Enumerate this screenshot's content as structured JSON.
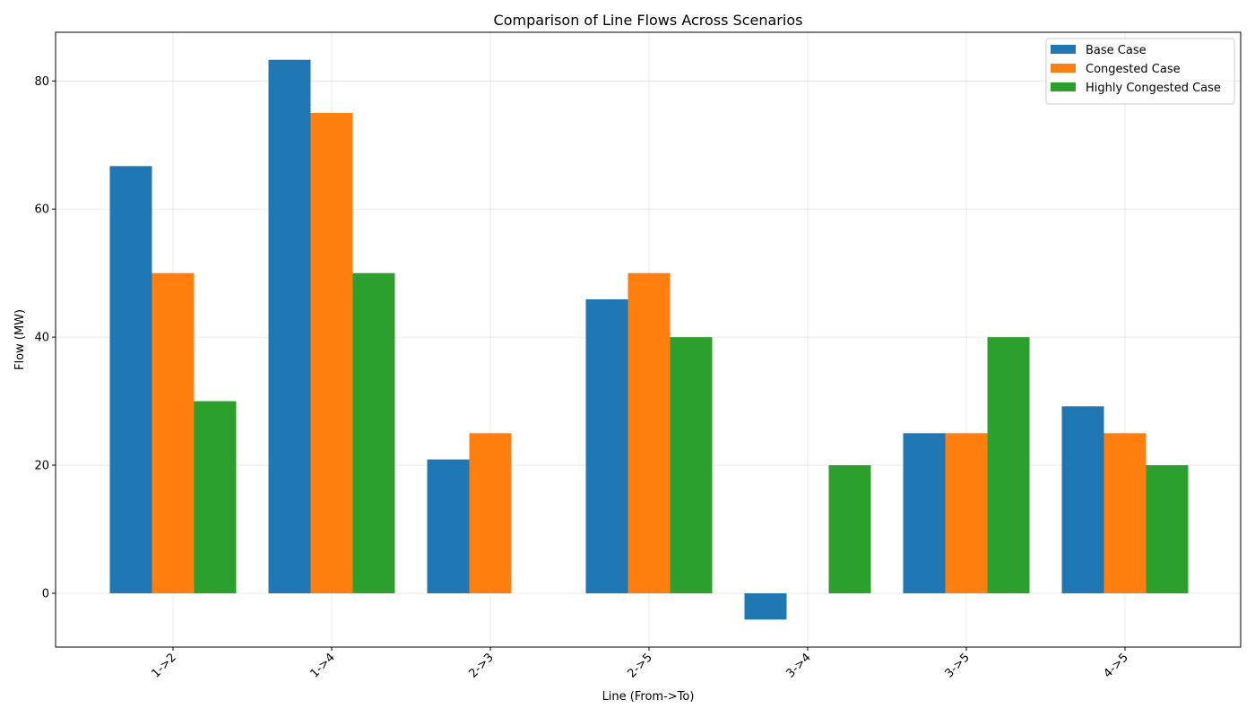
{
  "chart_data": {
    "type": "bar",
    "title": "Comparison of Line Flows Across Scenarios",
    "xlabel": "Line (From->To)",
    "ylabel": "Flow (MW)",
    "categories": [
      "1->2",
      "1->4",
      "2->3",
      "2->5",
      "3->4",
      "3->5",
      "4->5"
    ],
    "ylim": [
      -8.4,
      87.6
    ],
    "yticks": [
      0,
      20,
      40,
      60,
      80
    ],
    "grid": true,
    "legend_position": "top-right",
    "series": [
      {
        "name": "Base Case",
        "color": "#1f77b4",
        "values": [
          66.7,
          83.3,
          20.9,
          45.9,
          -4.1,
          25.0,
          29.2
        ]
      },
      {
        "name": "Congested Case",
        "color": "#ff7f0e",
        "values": [
          50,
          75,
          25,
          50,
          0,
          25,
          25
        ]
      },
      {
        "name": "Highly Congested Case",
        "color": "#2ca02c",
        "values": [
          30,
          50,
          0,
          40,
          20,
          40,
          20
        ]
      }
    ]
  }
}
